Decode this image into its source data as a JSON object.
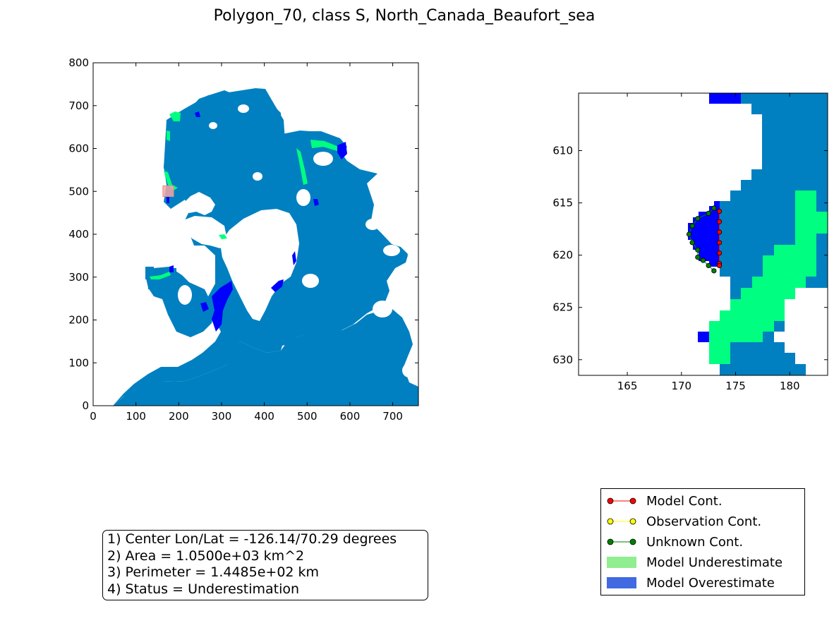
{
  "title": "Polygon_70, class S, North_Canada_Beaufort_sea",
  "colors": {
    "ocean": "#0080c0",
    "land": "#ffffff",
    "underestimate": "#00ff80",
    "overestimate": "#0000ff",
    "marker": "#f4a7a7",
    "model_cont": "#ff0000",
    "observation_cont": "#ffff00",
    "unknown_cont": "#008000",
    "legend_underestimate": "#90ee90",
    "legend_overestimate": "#4169e1"
  },
  "chart_data": [
    {
      "type": "heatmap",
      "name": "overview-map",
      "xlim": [
        0,
        760
      ],
      "ylim": [
        0,
        800
      ],
      "xticks": [
        "0",
        "100",
        "200",
        "300",
        "400",
        "500",
        "600",
        "700"
      ],
      "yticks": [
        "0",
        "100",
        "200",
        "300",
        "400",
        "500",
        "600",
        "700",
        "800"
      ],
      "highlight_box": {
        "x": [
          163,
          188
        ],
        "y": [
          488,
          513
        ]
      }
    },
    {
      "type": "heatmap",
      "name": "zoom-map",
      "xlim": [
        160.5,
        183.5
      ],
      "ylim": [
        631.5,
        604.5
      ],
      "xticks": [
        "165",
        "170",
        "175",
        "180"
      ],
      "yticks": [
        "610",
        "615",
        "620",
        "625",
        "630"
      ],
      "model_contour": [
        [
          173.5,
          615.8
        ],
        [
          173.5,
          616.8
        ],
        [
          173.5,
          617.8
        ],
        [
          173.5,
          618.8
        ],
        [
          173.5,
          619.8
        ],
        [
          173.5,
          620.8
        ],
        [
          173.5,
          621.0
        ]
      ],
      "unknown_contour": [
        [
          173.0,
          615.5
        ],
        [
          172.5,
          616.0
        ],
        [
          171.5,
          616.5
        ],
        [
          171.0,
          617.2
        ],
        [
          170.7,
          618.0
        ],
        [
          171.0,
          618.8
        ],
        [
          171.5,
          619.5
        ],
        [
          171.5,
          620.2
        ],
        [
          172.0,
          620.5
        ],
        [
          172.5,
          621.0
        ],
        [
          173.0,
          621.5
        ]
      ]
    }
  ],
  "info": {
    "line1": "1) Center Lon/Lat = -126.14/70.29 degrees",
    "line2": "2) Area = 1.0500e+03 km^2",
    "line3": "3) Perimeter = 1.4485e+02 km",
    "line4": "4) Status = Underestimation"
  },
  "legend": {
    "model_cont": "Model Cont.",
    "observation_cont": "Observation Cont.",
    "unknown_cont": "Unknown Cont.",
    "model_underestimate": "Model Underestimate",
    "model_overestimate": "Model Overestimate"
  }
}
